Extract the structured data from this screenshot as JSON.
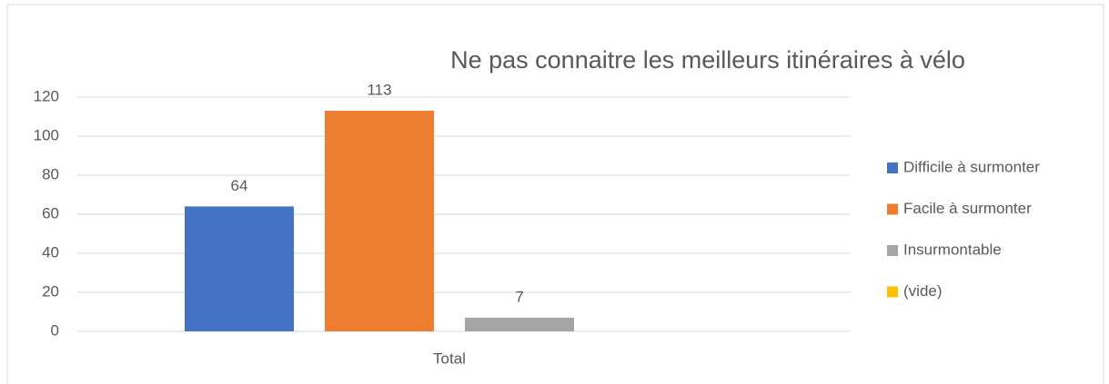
{
  "chart_data": {
    "type": "bar",
    "title": "Ne pas connaitre les meilleurs itinéraires à vélo",
    "categories": [
      "Total"
    ],
    "series": [
      {
        "name": "Difficile à surmonter",
        "color": "#4472c4",
        "values": [
          64
        ]
      },
      {
        "name": "Facile à surmonter",
        "color": "#ed7d31",
        "values": [
          113
        ]
      },
      {
        "name": "Insurmontable",
        "color": "#a5a5a5",
        "values": [
          7
        ]
      },
      {
        "name": "(vide)",
        "color": "#ffc000",
        "values": [
          null
        ]
      }
    ],
    "ylim": [
      0,
      120
    ],
    "yticks": [
      0,
      20,
      40,
      60,
      80,
      100,
      120
    ],
    "grid": true,
    "legend": "right",
    "data_labels": true
  }
}
